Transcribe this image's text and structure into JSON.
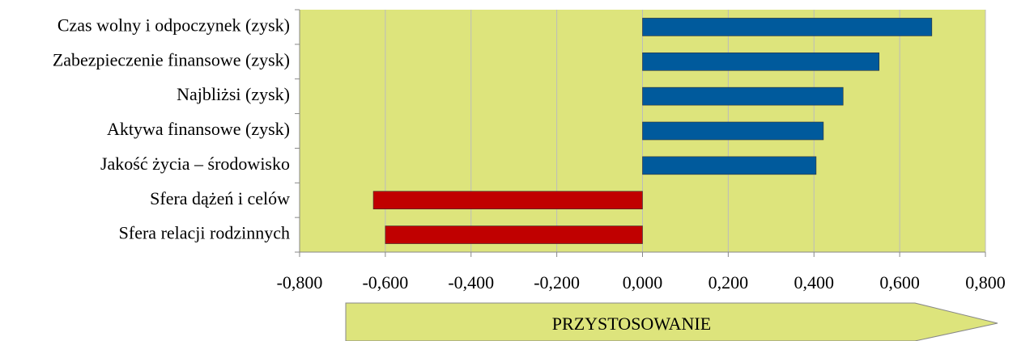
{
  "chart_data": {
    "type": "barh",
    "categories": [
      "Czas wolny i odpoczynek (zysk)",
      "Zabezpieczenie finansowe (zysk)",
      "Najbliżsi (zysk)",
      "Aktywa finansowe (zysk)",
      "Jakość życia – środowisko",
      "Sfera dążeń i celów",
      "Sfera relacji rodzinnych"
    ],
    "values": [
      0.675,
      0.552,
      0.468,
      0.422,
      0.405,
      -0.628,
      -0.6
    ],
    "colors": [
      "#005a9c",
      "#005a9c",
      "#005a9c",
      "#005a9c",
      "#005a9c",
      "#c00000",
      "#c00000"
    ],
    "xlim": [
      -0.8,
      0.8
    ],
    "xticks": [
      {
        "value": -0.8,
        "label": "-0,800"
      },
      {
        "value": -0.6,
        "label": "-0,600"
      },
      {
        "value": -0.4,
        "label": "-0,400"
      },
      {
        "value": -0.2,
        "label": "-0,200"
      },
      {
        "value": 0,
        "label": "0,000"
      },
      {
        "value": 0.2,
        "label": "0,200"
      },
      {
        "value": 0.4,
        "label": "0,400"
      },
      {
        "value": 0.6,
        "label": "0,600"
      },
      {
        "value": 0.8,
        "label": "0,800"
      }
    ],
    "xlabel": "PRZYSTOSOWANIE",
    "grid": true,
    "background": "#dde47c"
  }
}
